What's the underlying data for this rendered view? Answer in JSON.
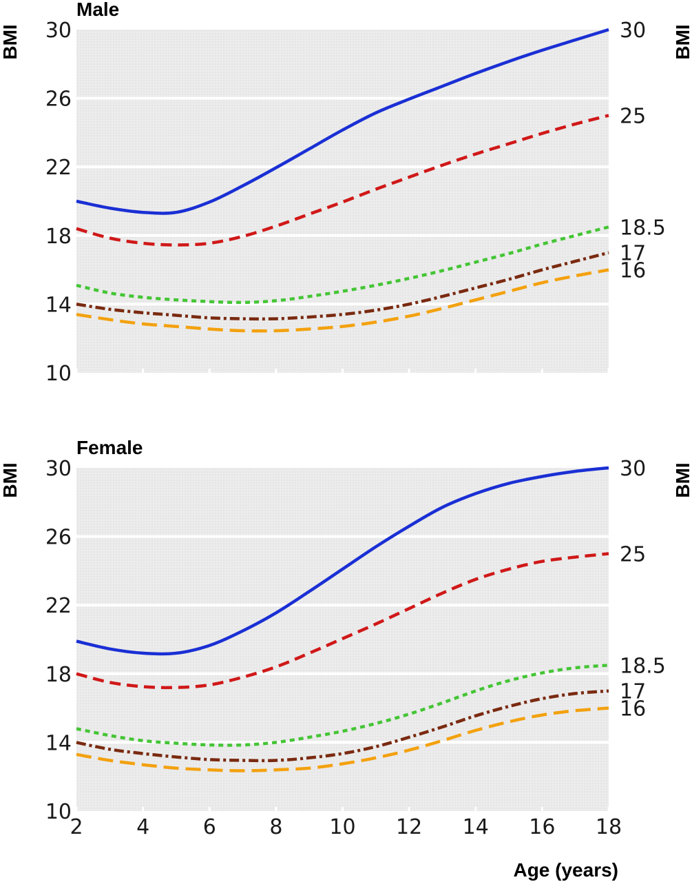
{
  "chart_data": [
    {
      "type": "line",
      "title": "Male",
      "ylabel": "BMI",
      "ylabel_right": "BMI",
      "xlabel": "",
      "xlim": [
        2,
        18
      ],
      "ylim": [
        10,
        30
      ],
      "yticks": [
        10,
        14,
        18,
        22,
        26,
        30
      ],
      "xticks": [
        2,
        4,
        6,
        8,
        10,
        12,
        14,
        16,
        18
      ],
      "xtick_labels_visible": false,
      "grid": "horizontal",
      "legend": "none",
      "series": [
        {
          "label": "30",
          "color": "#1a2fd4",
          "dash": "solid",
          "points": [
            [
              2,
              20.0
            ],
            [
              3,
              19.6
            ],
            [
              4,
              19.35
            ],
            [
              5,
              19.35
            ],
            [
              6,
              19.95
            ],
            [
              7,
              20.9
            ],
            [
              8,
              21.95
            ],
            [
              9,
              23.05
            ],
            [
              10,
              24.15
            ],
            [
              11,
              25.15
            ],
            [
              12,
              25.95
            ],
            [
              13,
              26.7
            ],
            [
              14,
              27.45
            ],
            [
              15,
              28.15
            ],
            [
              16,
              28.8
            ],
            [
              17,
              29.4
            ],
            [
              18,
              30.0
            ]
          ]
        },
        {
          "label": "25",
          "color": "#d01818",
          "dash": "dashed",
          "points": [
            [
              2,
              18.4
            ],
            [
              3,
              17.85
            ],
            [
              4,
              17.55
            ],
            [
              5,
              17.45
            ],
            [
              6,
              17.55
            ],
            [
              7,
              17.95
            ],
            [
              8,
              18.55
            ],
            [
              9,
              19.25
            ],
            [
              10,
              19.95
            ],
            [
              11,
              20.7
            ],
            [
              12,
              21.4
            ],
            [
              13,
              22.1
            ],
            [
              14,
              22.75
            ],
            [
              15,
              23.35
            ],
            [
              16,
              23.95
            ],
            [
              17,
              24.5
            ],
            [
              18,
              25.0
            ]
          ]
        },
        {
          "label": "18.5",
          "color": "#44c535",
          "dash": "dotted",
          "points": [
            [
              2,
              15.1
            ],
            [
              3,
              14.65
            ],
            [
              4,
              14.4
            ],
            [
              5,
              14.25
            ],
            [
              6,
              14.15
            ],
            [
              7,
              14.1
            ],
            [
              8,
              14.2
            ],
            [
              9,
              14.45
            ],
            [
              10,
              14.75
            ],
            [
              11,
              15.1
            ],
            [
              12,
              15.5
            ],
            [
              13,
              15.95
            ],
            [
              14,
              16.45
            ],
            [
              15,
              16.95
            ],
            [
              16,
              17.5
            ],
            [
              17,
              18.0
            ],
            [
              18,
              18.5
            ]
          ]
        },
        {
          "label": "17",
          "color": "#7a2a10",
          "dash": "dashdot",
          "points": [
            [
              2,
              14.0
            ],
            [
              3,
              13.7
            ],
            [
              4,
              13.5
            ],
            [
              5,
              13.35
            ],
            [
              6,
              13.2
            ],
            [
              7,
              13.15
            ],
            [
              8,
              13.15
            ],
            [
              9,
              13.25
            ],
            [
              10,
              13.4
            ],
            [
              11,
              13.65
            ],
            [
              12,
              14.0
            ],
            [
              13,
              14.45
            ],
            [
              14,
              14.95
            ],
            [
              15,
              15.45
            ],
            [
              16,
              16.0
            ],
            [
              17,
              16.5
            ],
            [
              18,
              17.0
            ]
          ]
        },
        {
          "label": "16",
          "color": "#f3a10f",
          "dash": "longdash",
          "points": [
            [
              2,
              13.4
            ],
            [
              3,
              13.1
            ],
            [
              4,
              12.85
            ],
            [
              5,
              12.7
            ],
            [
              6,
              12.55
            ],
            [
              7,
              12.45
            ],
            [
              8,
              12.45
            ],
            [
              9,
              12.55
            ],
            [
              10,
              12.7
            ],
            [
              11,
              12.95
            ],
            [
              12,
              13.3
            ],
            [
              13,
              13.75
            ],
            [
              14,
              14.25
            ],
            [
              15,
              14.75
            ],
            [
              16,
              15.25
            ],
            [
              17,
              15.65
            ],
            [
              18,
              16.0
            ]
          ]
        }
      ]
    },
    {
      "type": "line",
      "title": "Female",
      "ylabel": "BMI",
      "ylabel_right": "BMI",
      "xlabel": "Age (years)",
      "xlim": [
        2,
        18
      ],
      "ylim": [
        10,
        30
      ],
      "yticks": [
        10,
        14,
        18,
        22,
        26,
        30
      ],
      "xticks": [
        2,
        4,
        6,
        8,
        10,
        12,
        14,
        16,
        18
      ],
      "xtick_labels_visible": true,
      "grid": "horizontal",
      "legend": "none",
      "series": [
        {
          "label": "30",
          "color": "#1a2fd4",
          "dash": "solid",
          "points": [
            [
              2,
              19.9
            ],
            [
              3,
              19.45
            ],
            [
              4,
              19.2
            ],
            [
              5,
              19.2
            ],
            [
              6,
              19.65
            ],
            [
              7,
              20.5
            ],
            [
              8,
              21.55
            ],
            [
              9,
              22.8
            ],
            [
              10,
              24.1
            ],
            [
              11,
              25.4
            ],
            [
              12,
              26.6
            ],
            [
              13,
              27.7
            ],
            [
              14,
              28.5
            ],
            [
              15,
              29.1
            ],
            [
              16,
              29.5
            ],
            [
              17,
              29.8
            ],
            [
              18,
              30.0
            ]
          ]
        },
        {
          "label": "25",
          "color": "#d01818",
          "dash": "dashed",
          "points": [
            [
              2,
              18.0
            ],
            [
              3,
              17.5
            ],
            [
              4,
              17.25
            ],
            [
              5,
              17.2
            ],
            [
              6,
              17.35
            ],
            [
              7,
              17.8
            ],
            [
              8,
              18.4
            ],
            [
              9,
              19.2
            ],
            [
              10,
              20.05
            ],
            [
              11,
              20.9
            ],
            [
              12,
              21.8
            ],
            [
              13,
              22.7
            ],
            [
              14,
              23.5
            ],
            [
              15,
              24.1
            ],
            [
              16,
              24.55
            ],
            [
              17,
              24.8
            ],
            [
              18,
              25.0
            ]
          ]
        },
        {
          "label": "18.5",
          "color": "#44c535",
          "dash": "dotted",
          "points": [
            [
              2,
              14.8
            ],
            [
              3,
              14.4
            ],
            [
              4,
              14.1
            ],
            [
              5,
              13.95
            ],
            [
              6,
              13.85
            ],
            [
              7,
              13.85
            ],
            [
              8,
              14.0
            ],
            [
              9,
              14.3
            ],
            [
              10,
              14.65
            ],
            [
              11,
              15.1
            ],
            [
              12,
              15.65
            ],
            [
              13,
              16.3
            ],
            [
              14,
              17.0
            ],
            [
              15,
              17.6
            ],
            [
              16,
              18.05
            ],
            [
              17,
              18.35
            ],
            [
              18,
              18.5
            ]
          ]
        },
        {
          "label": "17",
          "color": "#7a2a10",
          "dash": "dashdot",
          "points": [
            [
              2,
              14.0
            ],
            [
              3,
              13.6
            ],
            [
              4,
              13.35
            ],
            [
              5,
              13.15
            ],
            [
              6,
              13.0
            ],
            [
              7,
              12.95
            ],
            [
              8,
              12.95
            ],
            [
              9,
              13.1
            ],
            [
              10,
              13.35
            ],
            [
              11,
              13.75
            ],
            [
              12,
              14.3
            ],
            [
              13,
              14.9
            ],
            [
              14,
              15.55
            ],
            [
              15,
              16.1
            ],
            [
              16,
              16.55
            ],
            [
              17,
              16.85
            ],
            [
              18,
              17.0
            ]
          ]
        },
        {
          "label": "16",
          "color": "#f3a10f",
          "dash": "longdash",
          "points": [
            [
              2,
              13.3
            ],
            [
              3,
              12.95
            ],
            [
              4,
              12.7
            ],
            [
              5,
              12.5
            ],
            [
              6,
              12.4
            ],
            [
              7,
              12.35
            ],
            [
              8,
              12.4
            ],
            [
              9,
              12.5
            ],
            [
              10,
              12.75
            ],
            [
              11,
              13.1
            ],
            [
              12,
              13.55
            ],
            [
              13,
              14.1
            ],
            [
              14,
              14.7
            ],
            [
              15,
              15.2
            ],
            [
              16,
              15.6
            ],
            [
              17,
              15.85
            ],
            [
              18,
              16.0
            ]
          ]
        }
      ]
    }
  ]
}
